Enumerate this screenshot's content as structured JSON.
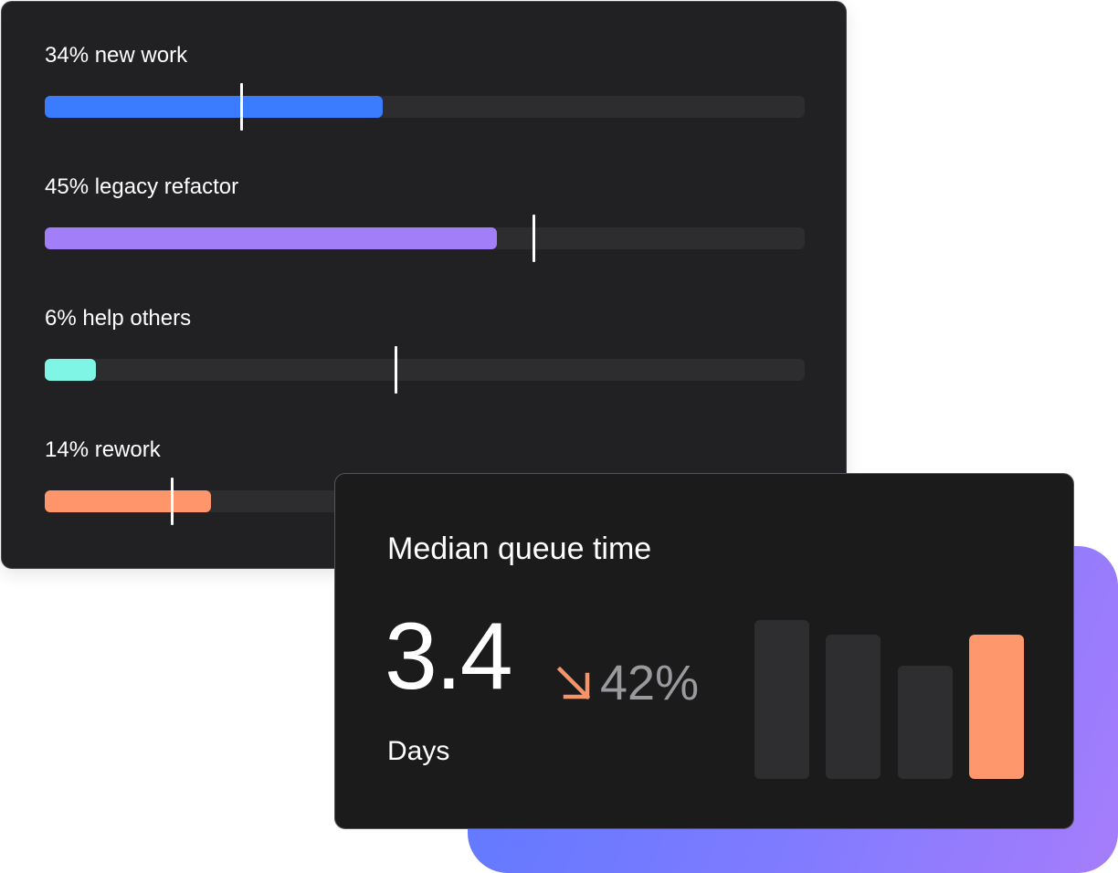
{
  "allocation": {
    "items": [
      {
        "label": "34% new work",
        "fill_fraction": 0.445,
        "marker_fraction": 0.259,
        "color": "#3b7cff"
      },
      {
        "label": "45% legacy refactor",
        "fill_fraction": 0.595,
        "marker_fraction": 0.644,
        "color": "#a27ef9"
      },
      {
        "label": "6% help others",
        "fill_fraction": 0.067,
        "marker_fraction": 0.462,
        "color": "#7ff5e6"
      },
      {
        "label": "14% rework",
        "fill_fraction": 0.219,
        "marker_fraction": 0.168,
        "color": "#ff966b"
      }
    ]
  },
  "queue": {
    "title": "Median queue time",
    "value": "3.4",
    "unit": "Days",
    "trend": {
      "icon": "arrow-down-right-icon",
      "value": "42%",
      "color": "#f5936a"
    },
    "mini_bars": [
      {
        "relative_height": 1.0,
        "color": "#2e2e30"
      },
      {
        "relative_height": 0.91,
        "color": "#2e2e30"
      },
      {
        "relative_height": 0.71,
        "color": "#2e2e30"
      },
      {
        "relative_height": 0.91,
        "color": "#ff976c"
      }
    ]
  },
  "backdrop_gradient": [
    "#5b79ff",
    "#a67dfb"
  ]
}
